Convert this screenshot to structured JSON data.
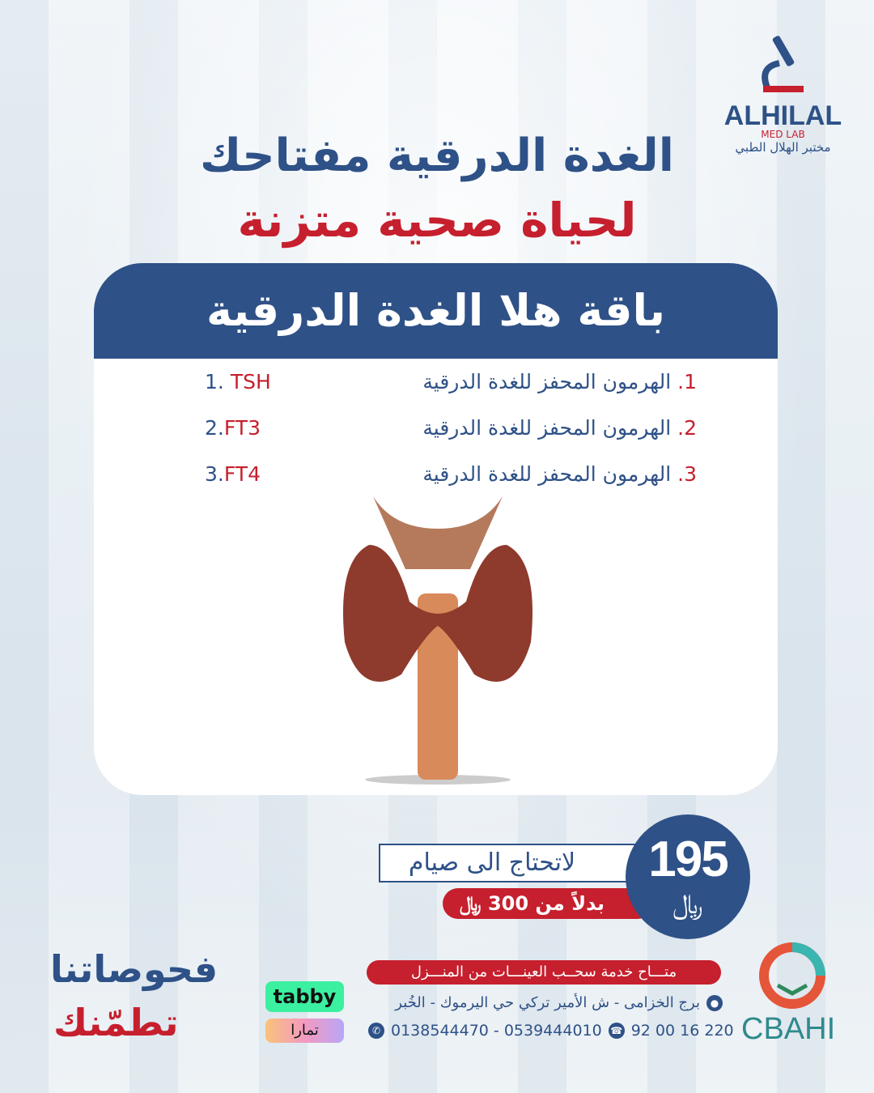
{
  "brand": {
    "name": "ALHILAL",
    "sub": "MED LAB",
    "arabic": "مختبر الهلال الطبي"
  },
  "headline": {
    "line1": "الغدة الدرقية مفتاحك",
    "line2": "لحياة صحية متزنة"
  },
  "package": {
    "title": "باقة هلا الغدة الدرقية",
    "items": [
      {
        "num": "1.",
        "ar": "الهرمون المحفز للغدة الدرقية",
        "en_num": "1.",
        "en": "TSH"
      },
      {
        "num": "2.",
        "ar": "الهرمون المحفز للغدة الدرقية",
        "en_num": "2.",
        "en": "FT3"
      },
      {
        "num": "3.",
        "ar": "الهرمون المحفز للغدة الدرقية",
        "en_num": "3.",
        "en": "FT4"
      }
    ]
  },
  "price": {
    "value": "195",
    "currency": "﷼",
    "no_fasting": "لاتحتاج الى صيام",
    "instead_of": "بدلاً من 300 ﷼"
  },
  "contact": {
    "service": "متـــاح خدمة سحــب العينـــات من المنـــزل",
    "address": "برج الخزامى - ش الأمير تركي حي اليرموك - الخُبر",
    "whatsapp": "0138544470 - 0539444010",
    "phone": "92 00 16 220"
  },
  "payments": {
    "tabby": "tabby",
    "tamara": "تمارا"
  },
  "accreditation": "CBAHI",
  "slogan": {
    "line1": "فحوصاتنا",
    "line2": "تطمّنك"
  },
  "colors": {
    "blue": "#2e5187",
    "red": "#c61f2d"
  }
}
